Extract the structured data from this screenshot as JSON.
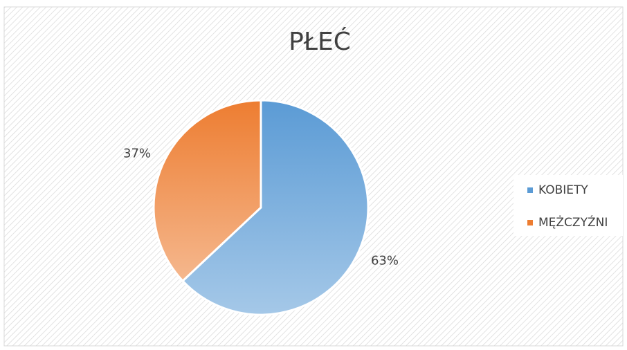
{
  "chart_data": {
    "type": "pie",
    "title": "PŁEĆ",
    "categories": [
      "KOBIETY",
      "MĘŻCZYŹNI"
    ],
    "values": [
      63,
      37
    ],
    "value_labels": [
      "63%",
      "37%"
    ],
    "colors": [
      "#5b9bd5",
      "#ed7d31"
    ],
    "legend": "right"
  }
}
